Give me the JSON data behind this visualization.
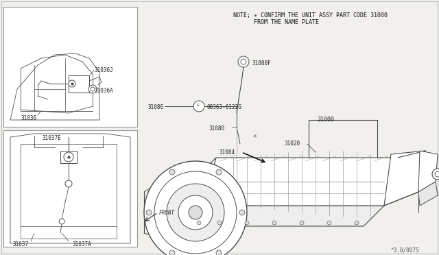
{
  "bg_color": "#f2f0ec",
  "line_color": "#4a4a4a",
  "white": "#ffffff",
  "note_line1": "NOTE; ✳ CONFIRM THE UNIT ASSY PART CODE 31000",
  "note_line2": "FROM THE NAME PLATE",
  "diagram_id": "^3.0/0075"
}
